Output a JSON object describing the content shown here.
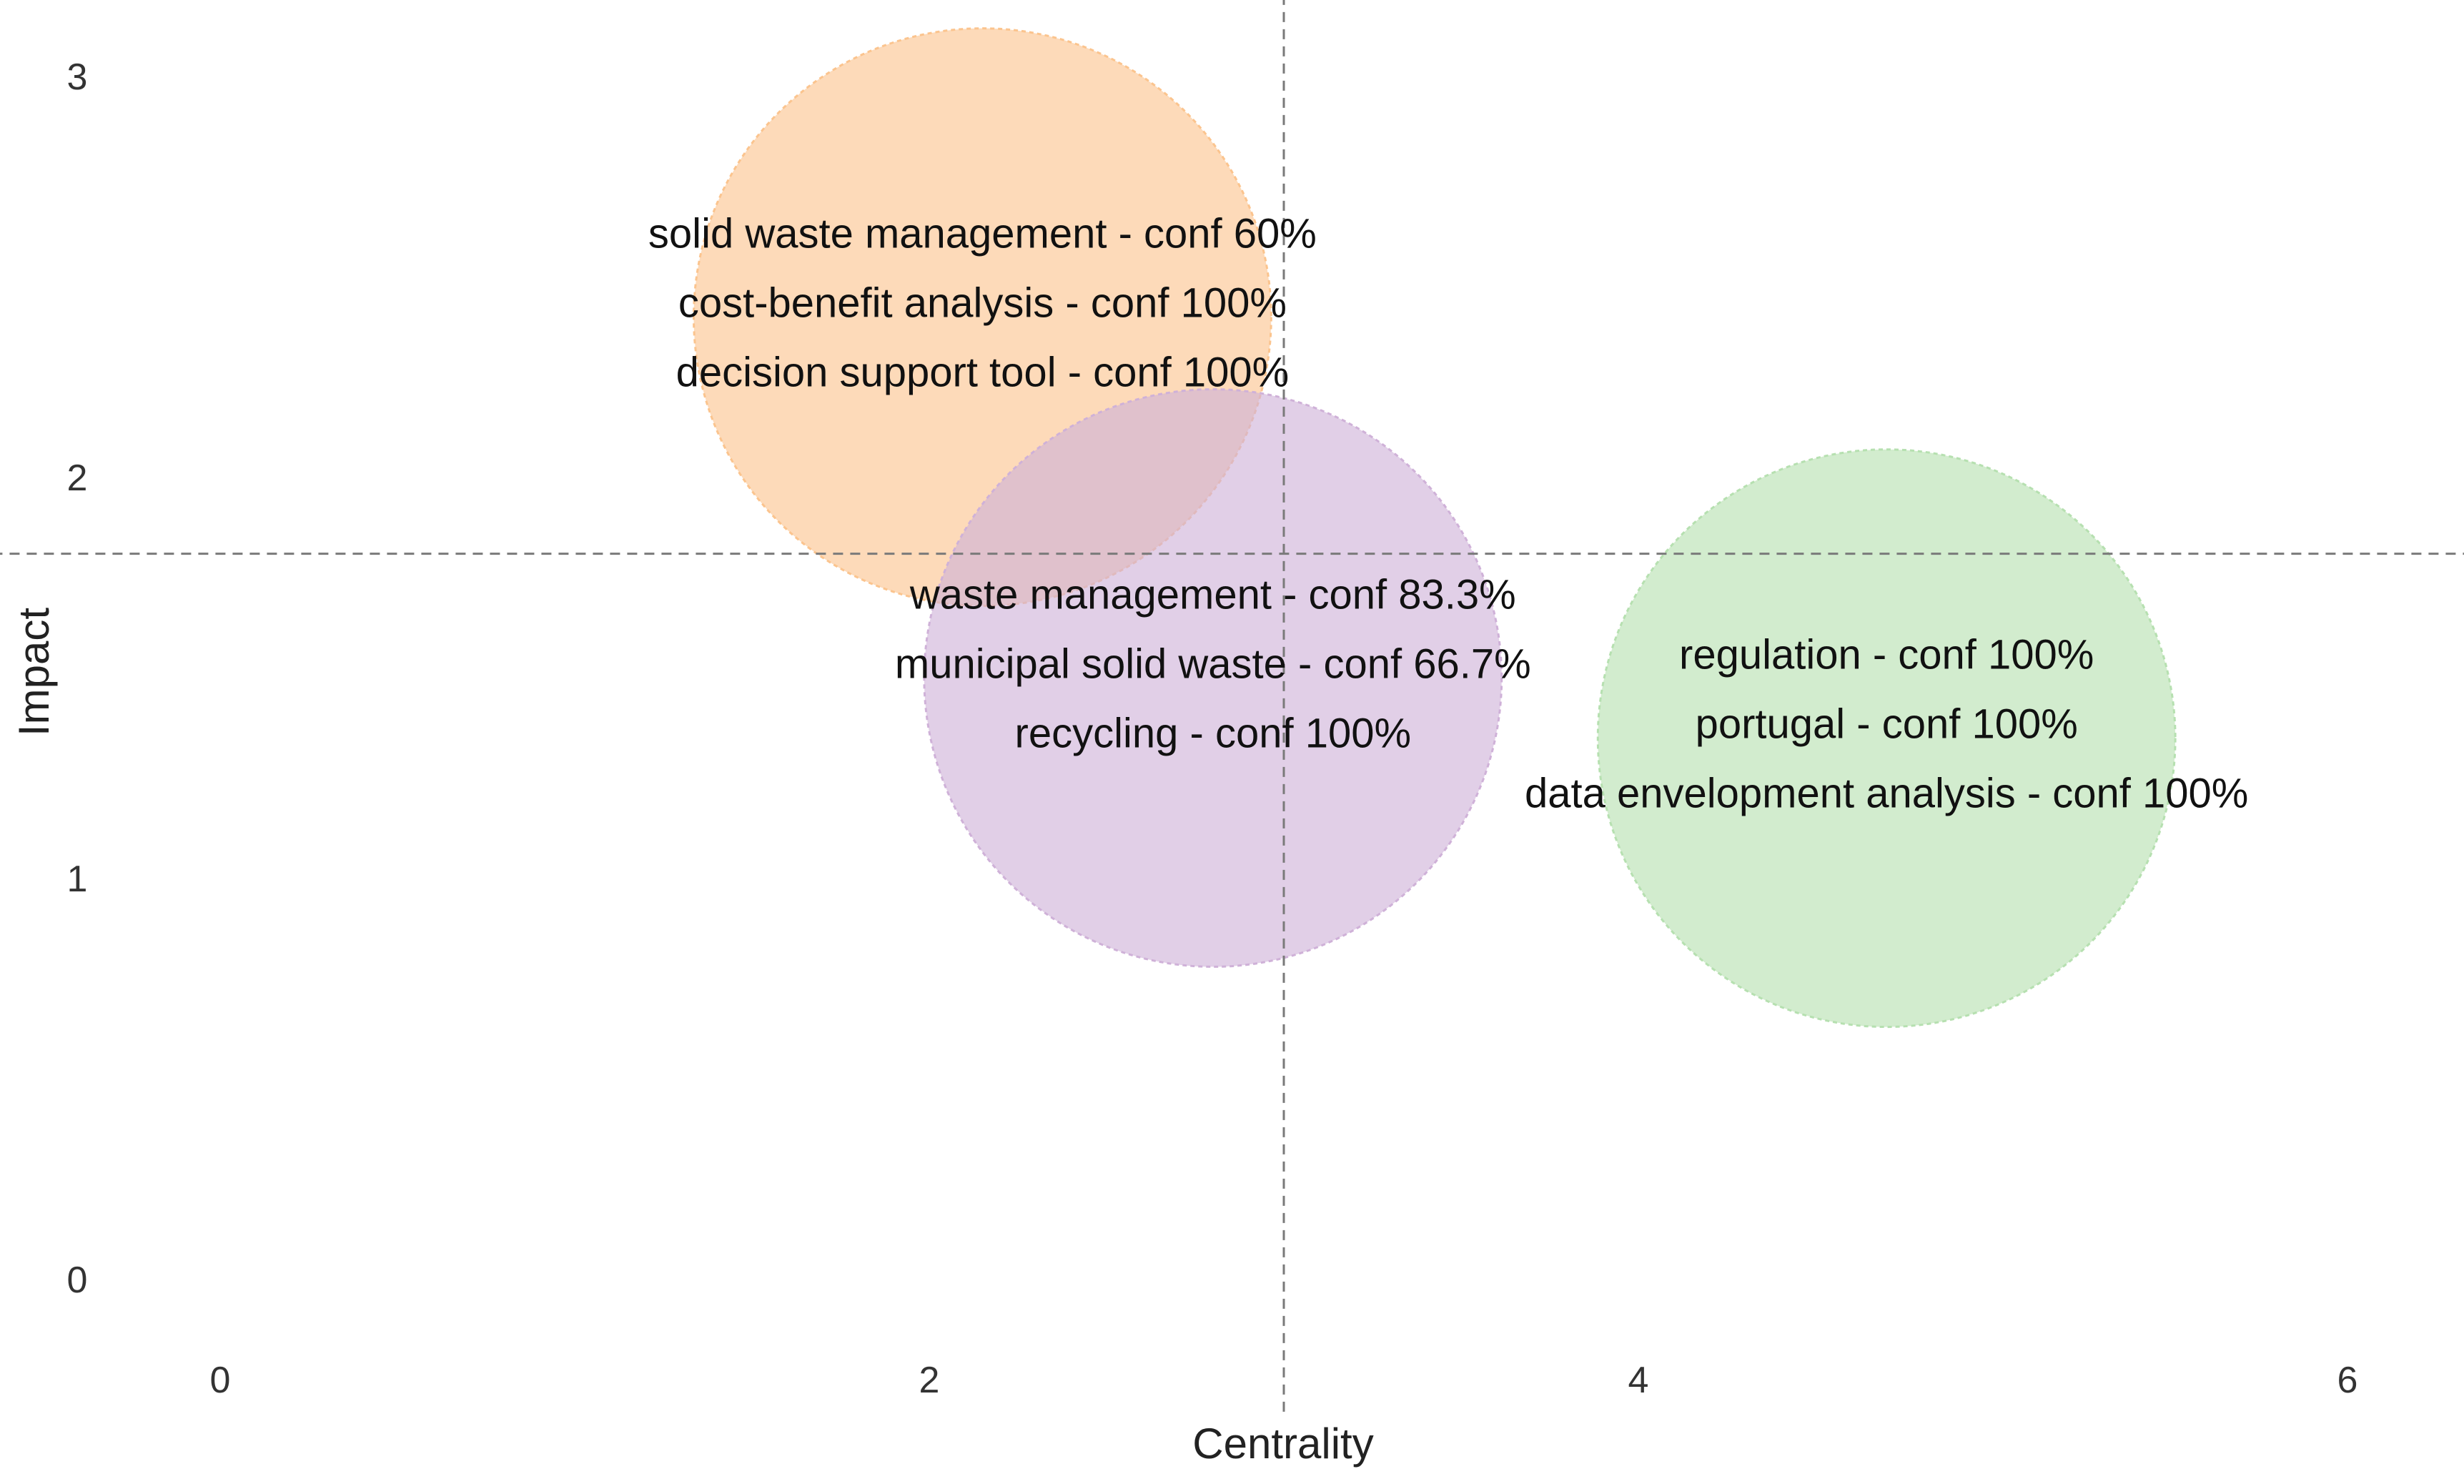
{
  "chart_data": {
    "type": "scatter",
    "xlabel": "Centrality",
    "ylabel": "Impact",
    "xlim": [
      -0.35,
      6.3
    ],
    "ylim": [
      -0.17,
      3.15
    ],
    "x_ticks": [
      "0",
      "2",
      "4",
      "6"
    ],
    "y_ticks": [
      "0",
      "1",
      "2",
      "3"
    ],
    "grid": false,
    "reference_lines": {
      "x": 3.0,
      "y": 1.81
    },
    "clusters": [
      {
        "x": 2.15,
        "y": 2.4,
        "radius": 0.72,
        "color": "#fbc48e",
        "labels": [
          "solid waste management - conf 60%",
          "cost-benefit analysis - conf 100%",
          "decision support tool - conf 100%"
        ]
      },
      {
        "x": 2.8,
        "y": 1.5,
        "radius": 0.72,
        "color": "#cfb1d8",
        "labels": [
          "waste management - conf 83.3%",
          "municipal solid waste - conf 66.7%",
          "recycling - conf 100%"
        ]
      },
      {
        "x": 4.7,
        "y": 1.35,
        "radius": 0.72,
        "color": "#b6e0b0",
        "labels": [
          "regulation - conf 100%",
          "portugal - conf 100%",
          "data envelopment analysis - conf 100%"
        ]
      }
    ]
  }
}
